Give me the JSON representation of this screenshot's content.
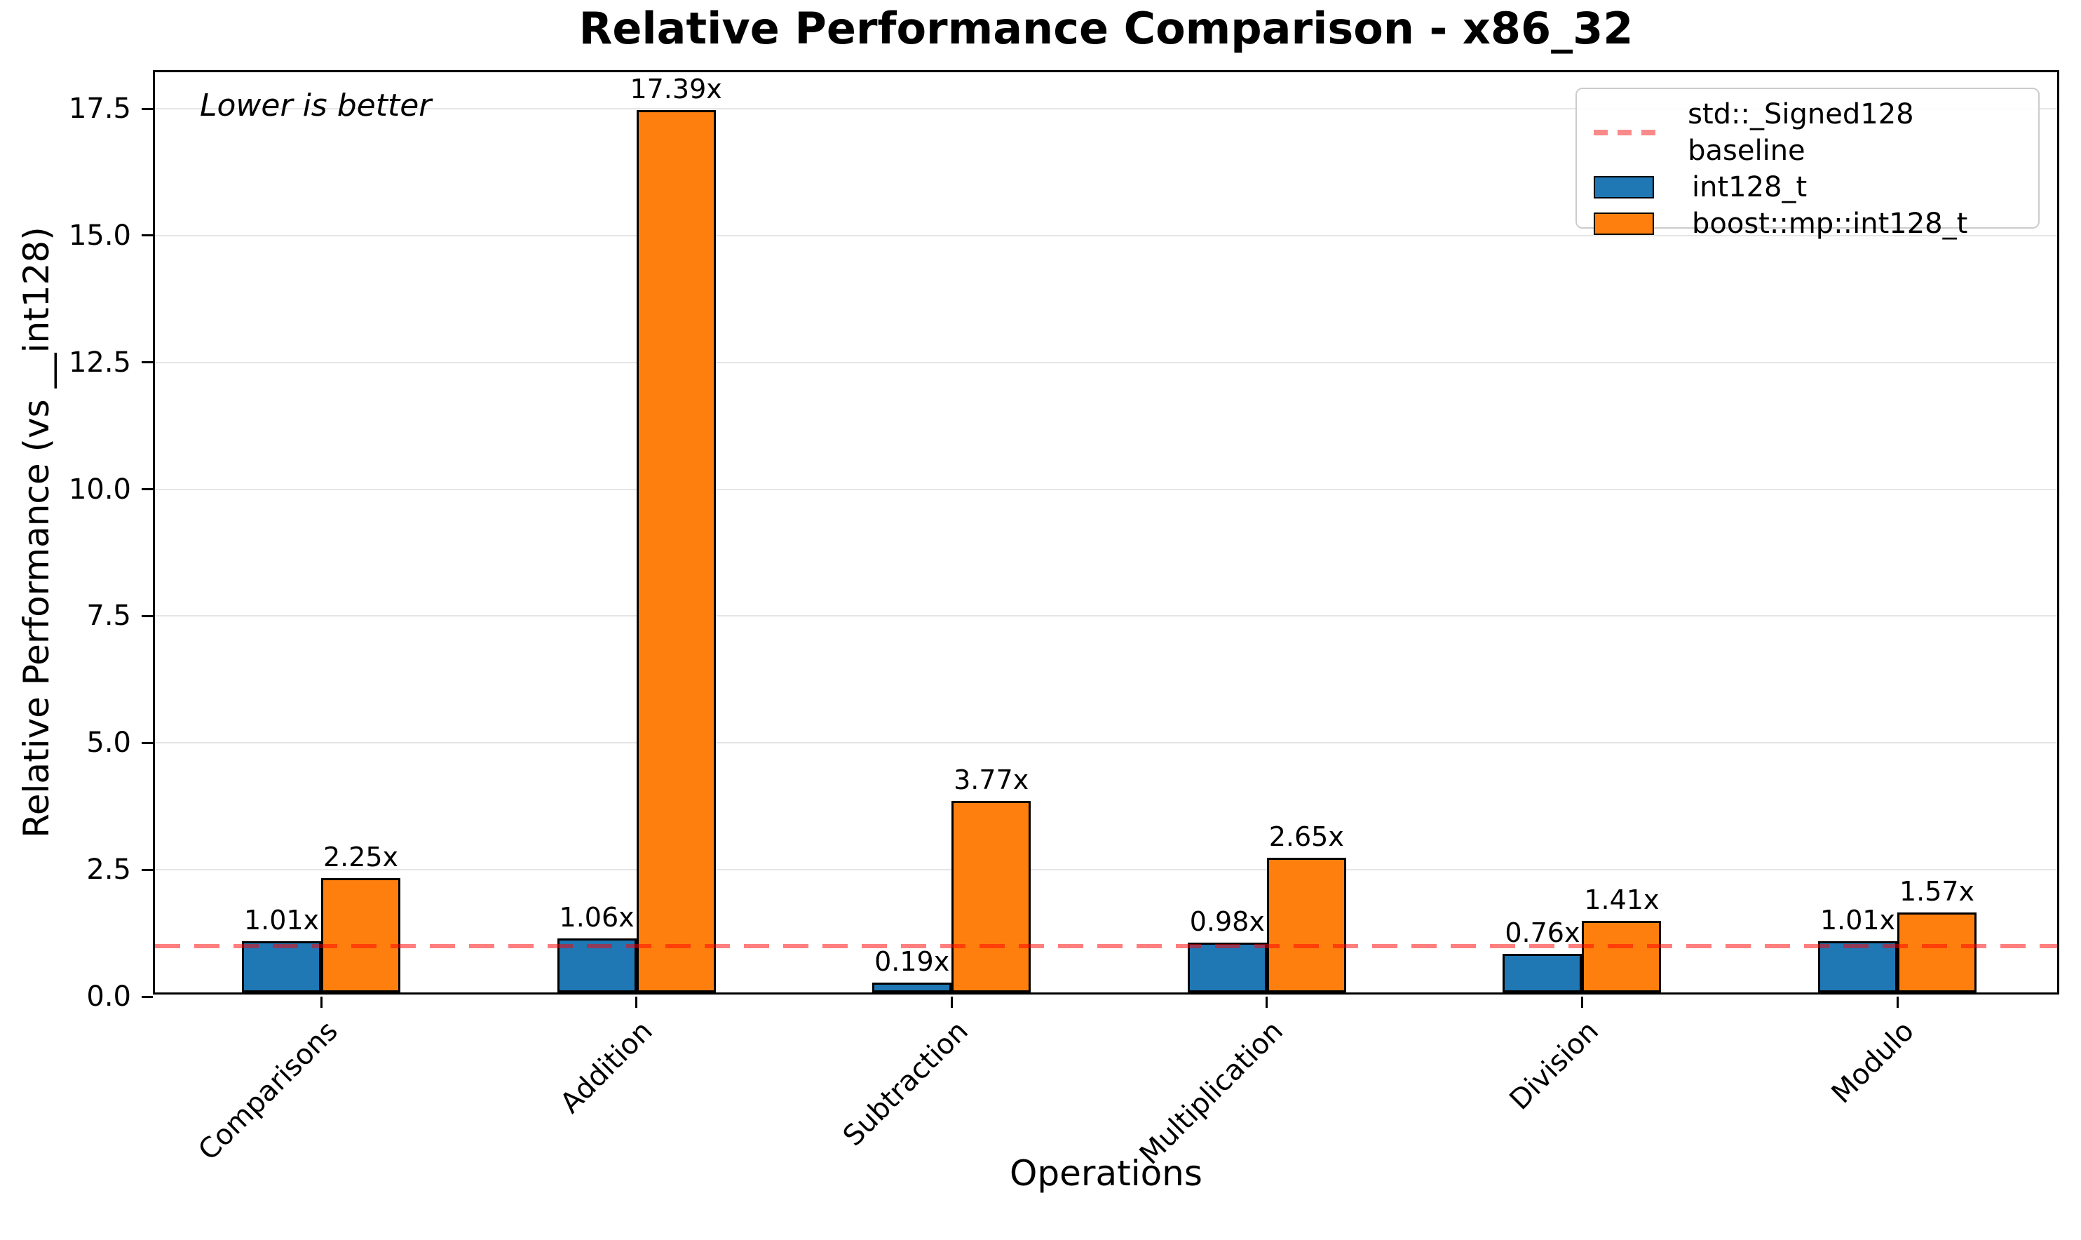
{
  "chart_data": {
    "type": "bar",
    "title": "Relative Performance Comparison - x86_32",
    "xlabel": "Operations",
    "ylabel": "Relative Performance (vs __int128)",
    "annotation": "Lower is better",
    "categories": [
      "Comparisons",
      "Addition",
      "Subtraction",
      "Multiplication",
      "Division",
      "Modulo"
    ],
    "series": [
      {
        "name": "int128_t",
        "color": "#1f77b4",
        "values": [
          1.01,
          1.06,
          0.19,
          0.98,
          0.76,
          1.01
        ],
        "labels": [
          "1.01x",
          "1.06x",
          "0.19x",
          "0.98x",
          "0.76x",
          "1.01x"
        ]
      },
      {
        "name": "boost::mp::int128_t",
        "color": "#ff7f0e",
        "values": [
          2.25,
          17.39,
          3.77,
          2.65,
          1.41,
          1.57
        ],
        "labels": [
          "2.25x",
          "17.39x",
          "3.77x",
          "2.65x",
          "1.41x",
          "1.57x"
        ]
      }
    ],
    "baseline": {
      "label": "std::_Signed128 baseline",
      "value": 1.0,
      "color": "#ff0000",
      "style": "dashed"
    },
    "yticks": [
      "0.0",
      "2.5",
      "5.0",
      "7.5",
      "10.0",
      "12.5",
      "15.0",
      "17.5"
    ],
    "ylim": [
      0,
      18.22
    ],
    "grid": true,
    "gridline_color": "#e5e5e5",
    "bar_edge_color": "#000000",
    "legend_position": "upper right"
  }
}
